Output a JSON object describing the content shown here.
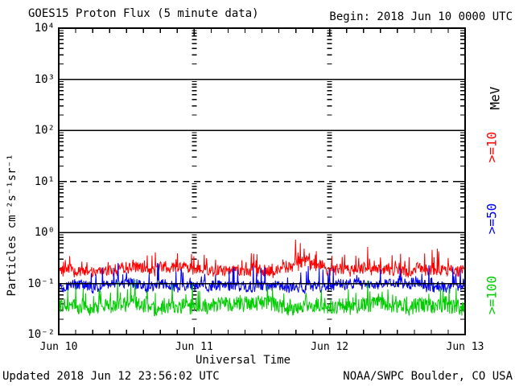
{
  "title": "GOES15 Proton Flux (5 minute data)",
  "begin_label": "Begin: 2018 Jun 10 0000 UTC",
  "footer": {
    "updated": "Updated 2018 Jun 12 23:56:02 UTC",
    "source": "NOAA/SWPC Boulder, CO USA"
  },
  "chart_data": {
    "type": "line",
    "title": "GOES15 Proton Flux (5 minute data)",
    "subtitle_begin": "2018 Jun 10 0000 UTC",
    "xlabel": "Universal Time",
    "ylabel": "Particles cm⁻²s⁻¹sr⁻¹",
    "right_axis_label": "MeV",
    "x_ticks": [
      "Jun 10",
      "Jun 11",
      "Jun 12",
      "Jun 13"
    ],
    "x_range_days": 3,
    "minor_tick_hours": 3,
    "y_scale": "log",
    "ylim": [
      0.01,
      10000
    ],
    "y_ticks": [
      "10⁴",
      "10³",
      "10²",
      "10¹",
      "10⁰",
      "10⁻¹",
      "10⁻²"
    ],
    "solid_gridlines": [
      1000,
      100,
      1,
      0.1
    ],
    "dashed_gridline": 10,
    "grid": true,
    "legend_position": "right-rotated",
    "n_points": 864,
    "interval_minutes": 5,
    "series": [
      {
        "name": "Proton flux >=10 MeV",
        "legend": ">=10",
        "color": "#ff0000",
        "baseline_log10": -0.74,
        "noise_log10": 0.11,
        "spike_prob": 0.1,
        "spike_amp_log10": 0.38,
        "floor_log10": -0.93,
        "approx_band": [
          0.12,
          0.45
        ],
        "event": {
          "center_days": 1.85,
          "width_days": 0.18,
          "amp_log10": 0.1
        },
        "peak": {
          "day": 1.75,
          "value_log10": -0.14
        },
        "seed": 7
      },
      {
        "name": "Proton flux >=50 MeV",
        "legend": ">=50",
        "color": "#0000ee",
        "baseline_log10": -1.03,
        "noise_log10": 0.1,
        "spike_prob": 0.09,
        "spike_amp_log10": 0.42,
        "floor_log10": -1.22,
        "approx_band": [
          0.06,
          0.25
        ],
        "seed": 13
      },
      {
        "name": "Proton flux >=100 MeV",
        "legend": ">=100",
        "color": "#00cc00",
        "baseline_log10": -1.43,
        "noise_log10": 0.15,
        "spike_prob": 0.08,
        "spike_amp_log10": 0.4,
        "floor_log10": -1.63,
        "approx_band": [
          0.023,
          0.1
        ],
        "seed": 5
      }
    ]
  }
}
